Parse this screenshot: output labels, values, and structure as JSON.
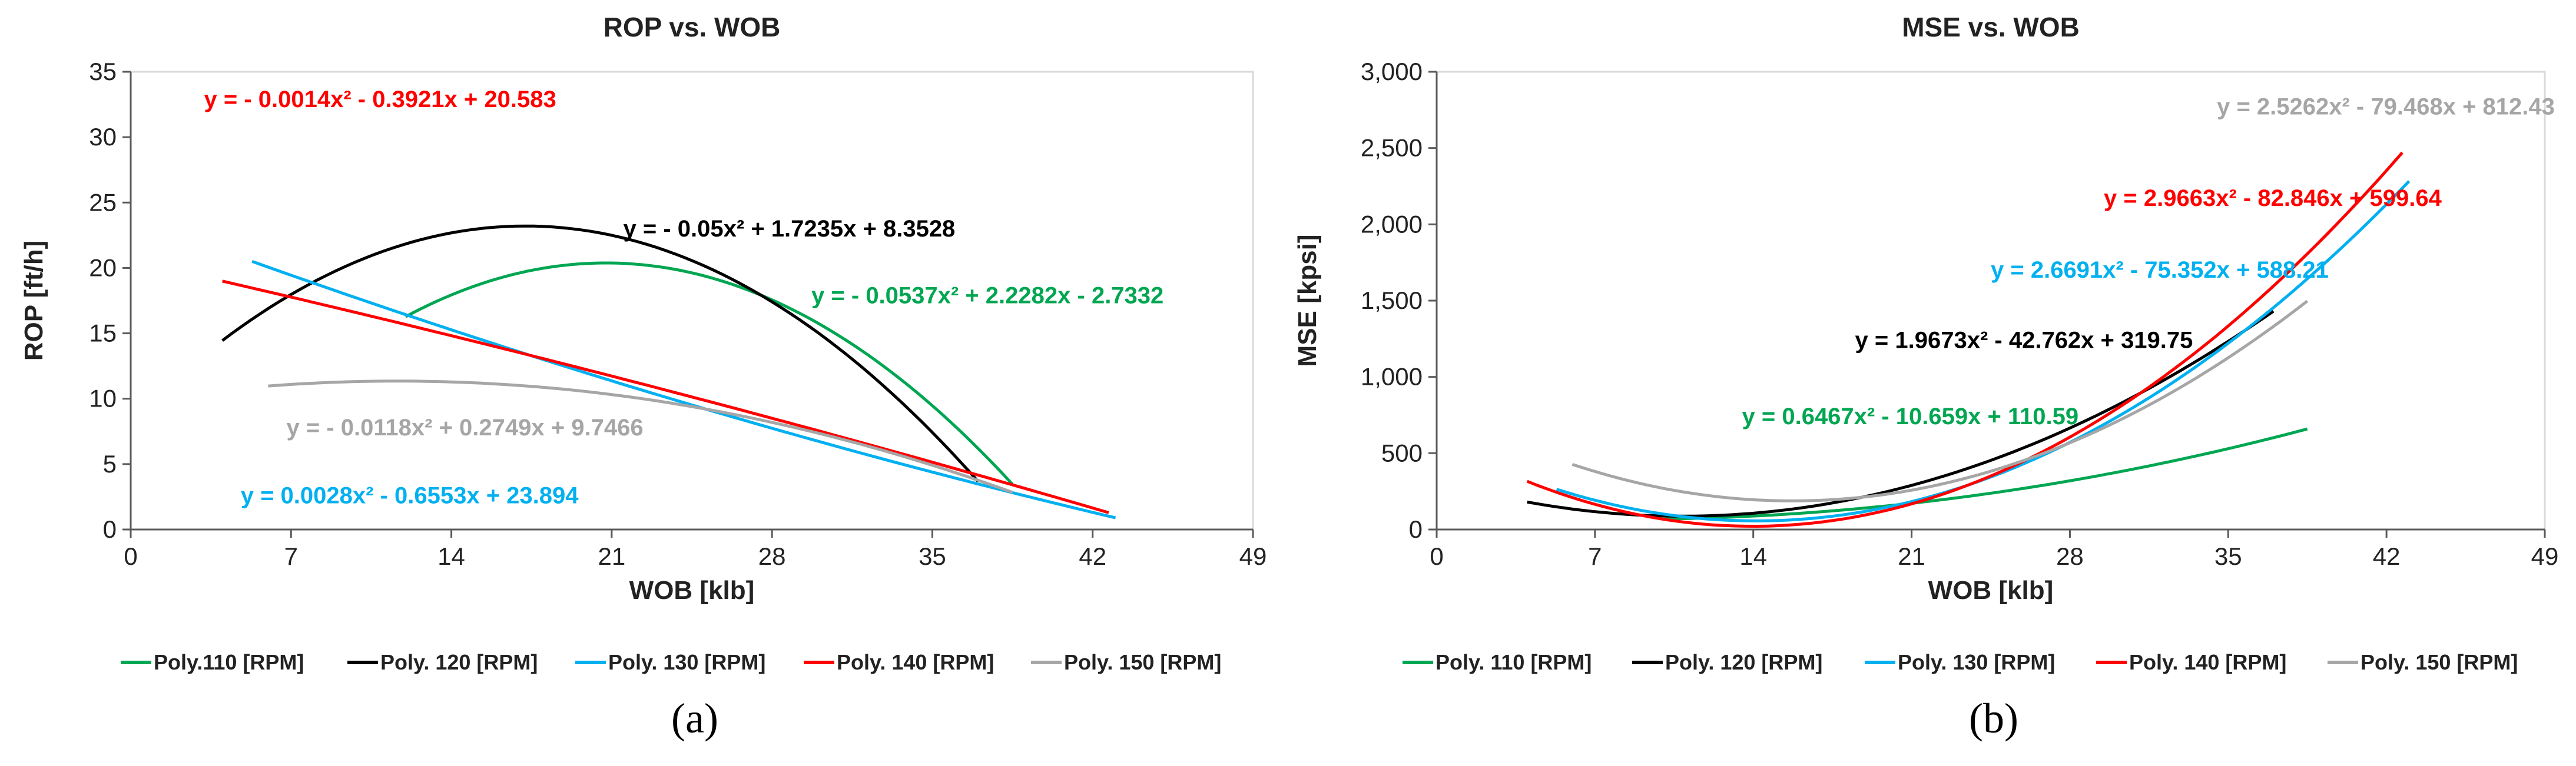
{
  "colors": {
    "110": "#00a651",
    "120": "#000000",
    "130": "#00b0f0",
    "140": "#ff0000",
    "150": "#a6a6a6"
  },
  "chart_data": [
    {
      "type": "line",
      "panel_label": "(a)",
      "title": "ROP vs. WOB",
      "xlabel": "WOB [klb]",
      "ylabel": "ROP [ft/h]",
      "xlim": [
        0,
        49
      ],
      "ylim": [
        0,
        35
      ],
      "xticks": [
        0,
        7,
        14,
        21,
        28,
        35,
        42,
        49
      ],
      "yticks": [
        0,
        5,
        10,
        15,
        20,
        25,
        30,
        35
      ],
      "ytick_labels": [
        "0",
        "5",
        "10",
        "15",
        "20",
        "25",
        "30",
        "35"
      ],
      "legend": [
        "Poly.110 [RPM]",
        "Poly. 120 [RPM]",
        "Poly. 130 [RPM]",
        "Poly. 140 [RPM]",
        "Poly. 150 [RPM]"
      ],
      "series": [
        {
          "name": "Poly.110 [RPM]",
          "key": "110",
          "coef": [
            -0.0537,
            2.2282,
            -2.7332
          ],
          "xrange": [
            12,
            38.5
          ],
          "equation": "y = - 0.0537x² + 2.2282x - 2.7332"
        },
        {
          "name": "Poly. 120 [RPM]",
          "key": "120",
          "coef": [
            -0.05,
            1.7235,
            8.3528
          ],
          "xrange": [
            4,
            37
          ],
          "equation": "y = - 0.05x² + 1.7235x + 8.3528"
        },
        {
          "name": "Poly. 130 [RPM]",
          "key": "130",
          "coef": [
            0.0028,
            -0.6553,
            23.894
          ],
          "xrange": [
            5.3,
            43
          ],
          "equation": "y = 0.0028x² - 0.6553x + 23.894"
        },
        {
          "name": "Poly. 140 [RPM]",
          "key": "140",
          "coef": [
            -0.0014,
            -0.3921,
            20.583
          ],
          "xrange": [
            4,
            42.7
          ],
          "equation": "y = - 0.0014x² - 0.3921x + 20.583"
        },
        {
          "name": "Poly. 150 [RPM]",
          "key": "150",
          "coef": [
            -0.0118,
            0.2749,
            9.7466
          ],
          "xrange": [
            6,
            38.5
          ],
          "equation": "y = - 0.0118x² + 0.2749x + 9.7466"
        }
      ],
      "annotations": [
        {
          "key": "140",
          "text": "y = - 0.0014x² - 0.3921x + 20.583",
          "at": [
            3.2,
            32.3
          ]
        },
        {
          "key": "120",
          "text": "y = - 0.05x² + 1.7235x + 8.3528",
          "at": [
            36,
            22.4
          ]
        },
        {
          "key": "110",
          "text": "y = - 0.0537x² + 2.2282x - 2.7332",
          "at": [
            45.1,
            17.3
          ]
        },
        {
          "key": "150",
          "text": "y = - 0.0118x² + 0.2749x + 9.7466",
          "at": [
            6.8,
            7.2
          ]
        },
        {
          "key": "130",
          "text": "y = 0.0028x² - 0.6553x + 23.894",
          "at": [
            4.8,
            2.0
          ]
        }
      ]
    },
    {
      "type": "line",
      "panel_label": "(b)",
      "title": "MSE vs. WOB",
      "xlabel": "WOB [klb]",
      "ylabel": "MSE [kpsi]",
      "xlim": [
        0,
        49
      ],
      "ylim": [
        0,
        3000
      ],
      "xticks": [
        0,
        7,
        14,
        21,
        28,
        35,
        42,
        49
      ],
      "yticks": [
        0,
        500,
        1000,
        1500,
        2000,
        2500,
        3000
      ],
      "ytick_labels": [
        "0",
        "500",
        "1,000",
        "1,500",
        "2,000",
        "2,500",
        "3,000"
      ],
      "legend": [
        "Poly. 110 [RPM]",
        "Poly. 120 [RPM]",
        "Poly. 130 [RPM]",
        "Poly. 140 [RPM]",
        "Poly. 150 [RPM]"
      ],
      "series": [
        {
          "name": "Poly. 110 [RPM]",
          "key": "110",
          "coef": [
            0.6467,
            -10.659,
            110.59
          ],
          "xrange": [
            10,
            38.5
          ],
          "equation": "y = 0.6467x² - 10.659x + 110.59"
        },
        {
          "name": "Poly. 120 [RPM]",
          "key": "120",
          "coef": [
            1.9673,
            -42.762,
            319.75
          ],
          "xrange": [
            4,
            37
          ],
          "equation": "y = 1.9673x² - 42.762x + 319.75"
        },
        {
          "name": "Poly. 130 [RPM]",
          "key": "130",
          "coef": [
            2.6691,
            -75.352,
            588.21
          ],
          "xrange": [
            5.3,
            43
          ],
          "equation": "y = 2.6691x² - 75.352x + 588.21"
        },
        {
          "name": "Poly. 140 [RPM]",
          "key": "140",
          "coef": [
            2.9663,
            -82.846,
            599.64
          ],
          "xrange": [
            4,
            42.7
          ],
          "equation": "y = 2.9663x² - 82.846x + 599.64"
        },
        {
          "name": "Poly. 150 [RPM]",
          "key": "150",
          "coef": [
            2.5262,
            -79.468,
            812.43
          ],
          "xrange": [
            6,
            38.5
          ],
          "equation": "y = 2.5262x² - 79.468x + 812.43"
        }
      ],
      "annotations": [
        {
          "key": "150",
          "text": "y = 2.5262x² - 79.468x + 812.43",
          "at": [
            34.5,
            2720
          ]
        },
        {
          "key": "140",
          "text": "y = 2.9663x² - 82.846x + 599.64",
          "at": [
            29.5,
            2120
          ]
        },
        {
          "key": "130",
          "text": "y = 2.6691x² - 75.352x + 588.21",
          "at": [
            24.5,
            1650
          ]
        },
        {
          "key": "120",
          "text": "y = 1.9673x² - 42.762x + 319.75",
          "at": [
            18.5,
            1190
          ]
        },
        {
          "key": "110",
          "text": "y = 0.6467x² - 10.659x + 110.59",
          "at": [
            13.5,
            690
          ]
        }
      ]
    }
  ]
}
